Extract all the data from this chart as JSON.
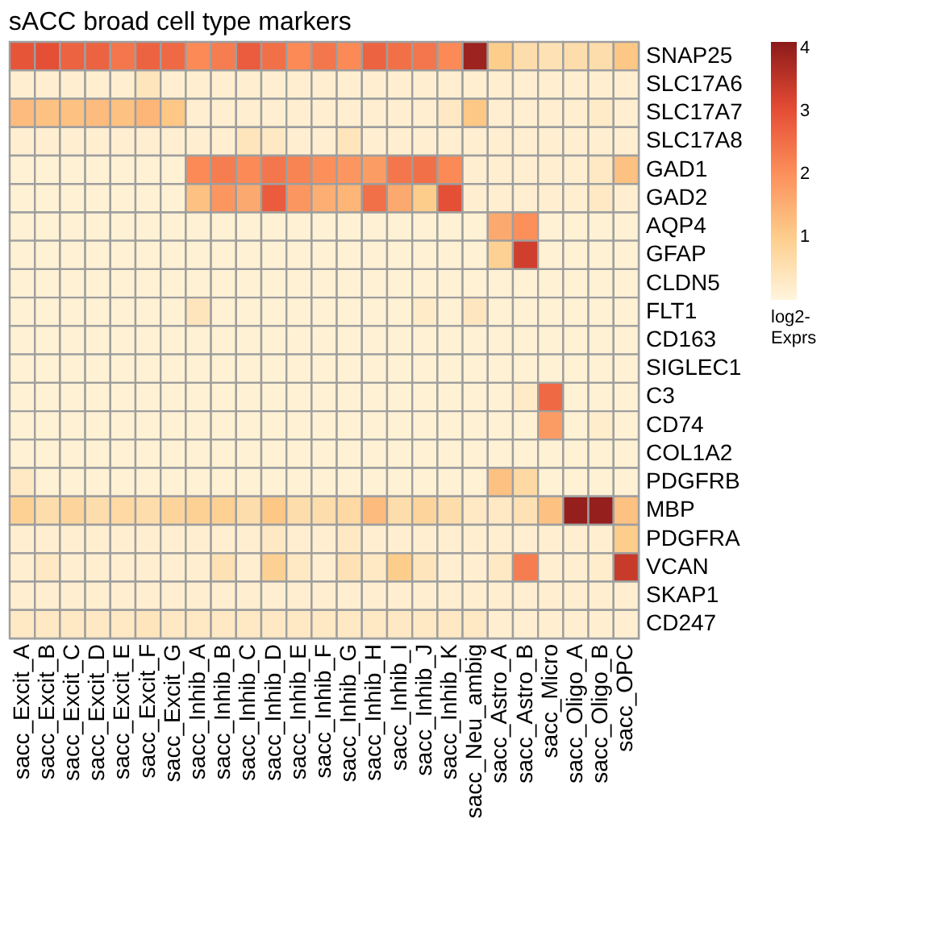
{
  "chart_data": {
    "type": "heatmap",
    "title": "sACC broad cell type markers",
    "clabel": "log2-Exprs",
    "categories": [
      "sacc_Excit_A",
      "sacc_Excit_B",
      "sacc_Excit_C",
      "sacc_Excit_D",
      "sacc_Excit_E",
      "sacc_Excit_F",
      "sacc_Excit_G",
      "sacc_Inhib_A",
      "sacc_Inhib_B",
      "sacc_Inhib_C",
      "sacc_Inhib_D",
      "sacc_Inhib_E",
      "sacc_Inhib_F",
      "sacc_Inhib_G",
      "sacc_Inhib_H",
      "sacc_Inhib_I",
      "sacc_Inhib_J",
      "sacc_Inhib_K",
      "sacc_Neu_ambig",
      "sacc_Astro_A",
      "sacc_Astro_B",
      "sacc_Micro",
      "sacc_Oligo_A",
      "sacc_Oligo_B",
      "sacc_OPC"
    ],
    "y_categories": [
      "SNAP25",
      "SLC17A6",
      "SLC17A7",
      "SLC17A8",
      "GAD1",
      "GAD2",
      "AQP4",
      "GFAP",
      "CLDN5",
      "FLT1",
      "CD163",
      "SIGLEC1",
      "C3",
      "CD74",
      "COL1A2",
      "PDGFRB",
      "MBP",
      "PDGFRA",
      "VCAN",
      "SKAP1",
      "CD247"
    ],
    "cells": [
      [
        2.9,
        3.0,
        2.7,
        2.7,
        2.4,
        2.7,
        2.6,
        2.1,
        2.3,
        2.8,
        2.5,
        2.1,
        2.4,
        2.1,
        2.7,
        2.5,
        2.4,
        2.1,
        3.9,
        1.0,
        0.6,
        0.5,
        0.6,
        0.6,
        1.1
      ],
      [
        0.15,
        0.15,
        0.15,
        0.15,
        0.15,
        0.4,
        0.15,
        0.15,
        0.15,
        0.15,
        0.15,
        0.15,
        0.15,
        0.15,
        0.15,
        0.15,
        0.15,
        0.15,
        0.15,
        0.15,
        0.15,
        0.15,
        0.15,
        0.15,
        0.15
      ],
      [
        1.3,
        1.2,
        1.2,
        1.3,
        1.2,
        1.4,
        1.1,
        0.15,
        0.15,
        0.15,
        0.15,
        0.15,
        0.15,
        0.15,
        0.15,
        0.15,
        0.15,
        0.3,
        1.1,
        0.15,
        0.15,
        0.15,
        0.15,
        0.25,
        0.15
      ],
      [
        0.15,
        0.15,
        0.15,
        0.15,
        0.15,
        0.15,
        0.15,
        0.15,
        0.15,
        0.4,
        0.3,
        0.15,
        0.15,
        0.4,
        0.15,
        0.15,
        0.15,
        0.15,
        0.15,
        0.15,
        0.15,
        0.15,
        0.15,
        0.15,
        0.15
      ],
      [
        0.1,
        0.1,
        0.1,
        0.1,
        0.1,
        0.1,
        0.1,
        2.1,
        2.3,
        2.1,
        2.4,
        2.2,
        2.0,
        1.9,
        1.8,
        2.4,
        2.5,
        2.1,
        0.15,
        0.15,
        0.15,
        0.15,
        0.15,
        0.3,
        1.2
      ],
      [
        0.1,
        0.1,
        0.1,
        0.1,
        0.1,
        0.1,
        0.1,
        1.2,
        1.9,
        1.6,
        2.8,
        1.9,
        1.5,
        1.4,
        2.5,
        1.6,
        1.0,
        3.0,
        0.15,
        0.15,
        0.15,
        0.15,
        0.15,
        0.3,
        0.15
      ],
      [
        0.1,
        0.1,
        0.1,
        0.1,
        0.1,
        0.1,
        0.1,
        0.1,
        0.1,
        0.1,
        0.1,
        0.1,
        0.1,
        0.1,
        0.1,
        0.1,
        0.1,
        0.1,
        0.1,
        1.6,
        2.0,
        0.1,
        0.1,
        0.1,
        0.1
      ],
      [
        0.1,
        0.1,
        0.1,
        0.1,
        0.1,
        0.1,
        0.1,
        0.1,
        0.1,
        0.1,
        0.1,
        0.1,
        0.1,
        0.1,
        0.1,
        0.1,
        0.1,
        0.1,
        0.1,
        0.9,
        3.3,
        0.1,
        0.1,
        0.1,
        0.1
      ],
      [
        0.1,
        0.1,
        0.1,
        0.1,
        0.1,
        0.1,
        0.1,
        0.1,
        0.1,
        0.1,
        0.1,
        0.1,
        0.1,
        0.1,
        0.1,
        0.1,
        0.1,
        0.1,
        0.1,
        0.1,
        0.1,
        0.1,
        0.1,
        0.1,
        0.1
      ],
      [
        0.1,
        0.1,
        0.1,
        0.1,
        0.1,
        0.1,
        0.1,
        0.4,
        0.1,
        0.1,
        0.1,
        0.1,
        0.1,
        0.1,
        0.1,
        0.1,
        0.25,
        0.1,
        0.35,
        0.1,
        0.1,
        0.1,
        0.1,
        0.1,
        0.1
      ],
      [
        0.1,
        0.1,
        0.1,
        0.1,
        0.1,
        0.1,
        0.1,
        0.1,
        0.1,
        0.1,
        0.1,
        0.1,
        0.1,
        0.1,
        0.1,
        0.1,
        0.1,
        0.1,
        0.1,
        0.1,
        0.1,
        0.1,
        0.1,
        0.1,
        0.1
      ],
      [
        0.1,
        0.1,
        0.1,
        0.1,
        0.1,
        0.1,
        0.1,
        0.1,
        0.1,
        0.1,
        0.1,
        0.1,
        0.1,
        0.1,
        0.1,
        0.1,
        0.1,
        0.1,
        0.1,
        0.1,
        0.1,
        0.1,
        0.1,
        0.1,
        0.1
      ],
      [
        0.1,
        0.1,
        0.1,
        0.1,
        0.1,
        0.1,
        0.1,
        0.1,
        0.1,
        0.1,
        0.1,
        0.1,
        0.1,
        0.1,
        0.1,
        0.1,
        0.1,
        0.1,
        0.1,
        0.1,
        0.25,
        2.6,
        0.1,
        0.1,
        0.1
      ],
      [
        0.1,
        0.1,
        0.1,
        0.1,
        0.1,
        0.1,
        0.1,
        0.1,
        0.1,
        0.1,
        0.1,
        0.1,
        0.1,
        0.1,
        0.1,
        0.1,
        0.1,
        0.1,
        0.1,
        0.1,
        0.1,
        1.8,
        0.1,
        0.2,
        0.1
      ],
      [
        0.1,
        0.1,
        0.1,
        0.1,
        0.1,
        0.1,
        0.1,
        0.1,
        0.1,
        0.1,
        0.1,
        0.1,
        0.1,
        0.1,
        0.1,
        0.1,
        0.1,
        0.1,
        0.1,
        0.1,
        0.1,
        0.1,
        0.1,
        0.1,
        0.1
      ],
      [
        0.3,
        0.1,
        0.1,
        0.1,
        0.1,
        0.1,
        0.1,
        0.1,
        0.1,
        0.1,
        0.1,
        0.1,
        0.1,
        0.1,
        0.1,
        0.1,
        0.1,
        0.1,
        0.1,
        1.2,
        0.7,
        0.1,
        0.1,
        0.1,
        0.1
      ],
      [
        0.9,
        0.6,
        0.8,
        0.6,
        0.7,
        0.6,
        0.8,
        0.9,
        0.9,
        0.6,
        1.1,
        0.6,
        0.6,
        0.7,
        1.3,
        0.6,
        0.8,
        0.6,
        0.3,
        0.3,
        0.5,
        1.2,
        4.0,
        4.0,
        1.2
      ],
      [
        0.15,
        0.15,
        0.15,
        0.15,
        0.15,
        0.15,
        0.15,
        0.15,
        0.15,
        0.15,
        0.3,
        0.15,
        0.15,
        0.3,
        0.15,
        0.15,
        0.15,
        0.15,
        0.15,
        0.15,
        0.15,
        0.15,
        0.15,
        0.15,
        1.0
      ],
      [
        0.15,
        0.3,
        0.15,
        0.15,
        0.15,
        0.15,
        0.15,
        0.15,
        0.5,
        0.15,
        0.9,
        0.3,
        0.15,
        0.5,
        0.3,
        1.0,
        0.4,
        0.15,
        0.15,
        0.3,
        2.3,
        0.15,
        0.15,
        0.2,
        3.4
      ],
      [
        0.15,
        0.15,
        0.15,
        0.15,
        0.15,
        0.15,
        0.15,
        0.15,
        0.15,
        0.15,
        0.15,
        0.15,
        0.15,
        0.15,
        0.15,
        0.15,
        0.15,
        0.15,
        0.15,
        0.15,
        0.15,
        0.15,
        0.15,
        0.15,
        0.15
      ],
      [
        0.3,
        0.3,
        0.3,
        0.3,
        0.3,
        0.4,
        0.3,
        0.3,
        0.3,
        0.3,
        0.3,
        0.3,
        0.3,
        0.3,
        0.3,
        0.3,
        0.3,
        0.3,
        0.3,
        0.15,
        0.15,
        0.15,
        0.15,
        0.15,
        0.15
      ]
    ],
    "clim": [
      0,
      4.1
    ],
    "cticks": [
      1,
      2,
      3,
      4
    ]
  }
}
